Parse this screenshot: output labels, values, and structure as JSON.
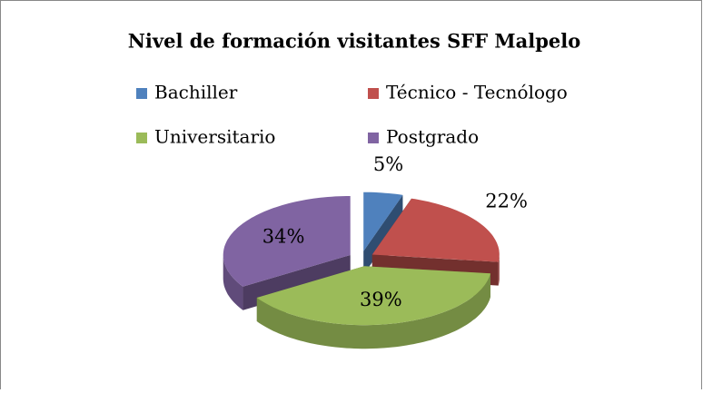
{
  "chart_data": {
    "type": "pie",
    "title": "Nivel de formación visitantes SFF Malpelo",
    "categories": [
      "Bachiller",
      "Técnico - Tecnólogo",
      "Universitario",
      "Postgrado"
    ],
    "values": [
      5,
      22,
      39,
      34
    ],
    "value_labels": [
      "5%",
      "22%",
      "39%",
      "34%"
    ],
    "colors": [
      "#4f81bd",
      "#c0504d",
      "#9bbb59",
      "#8064a2"
    ],
    "legend": "top"
  }
}
